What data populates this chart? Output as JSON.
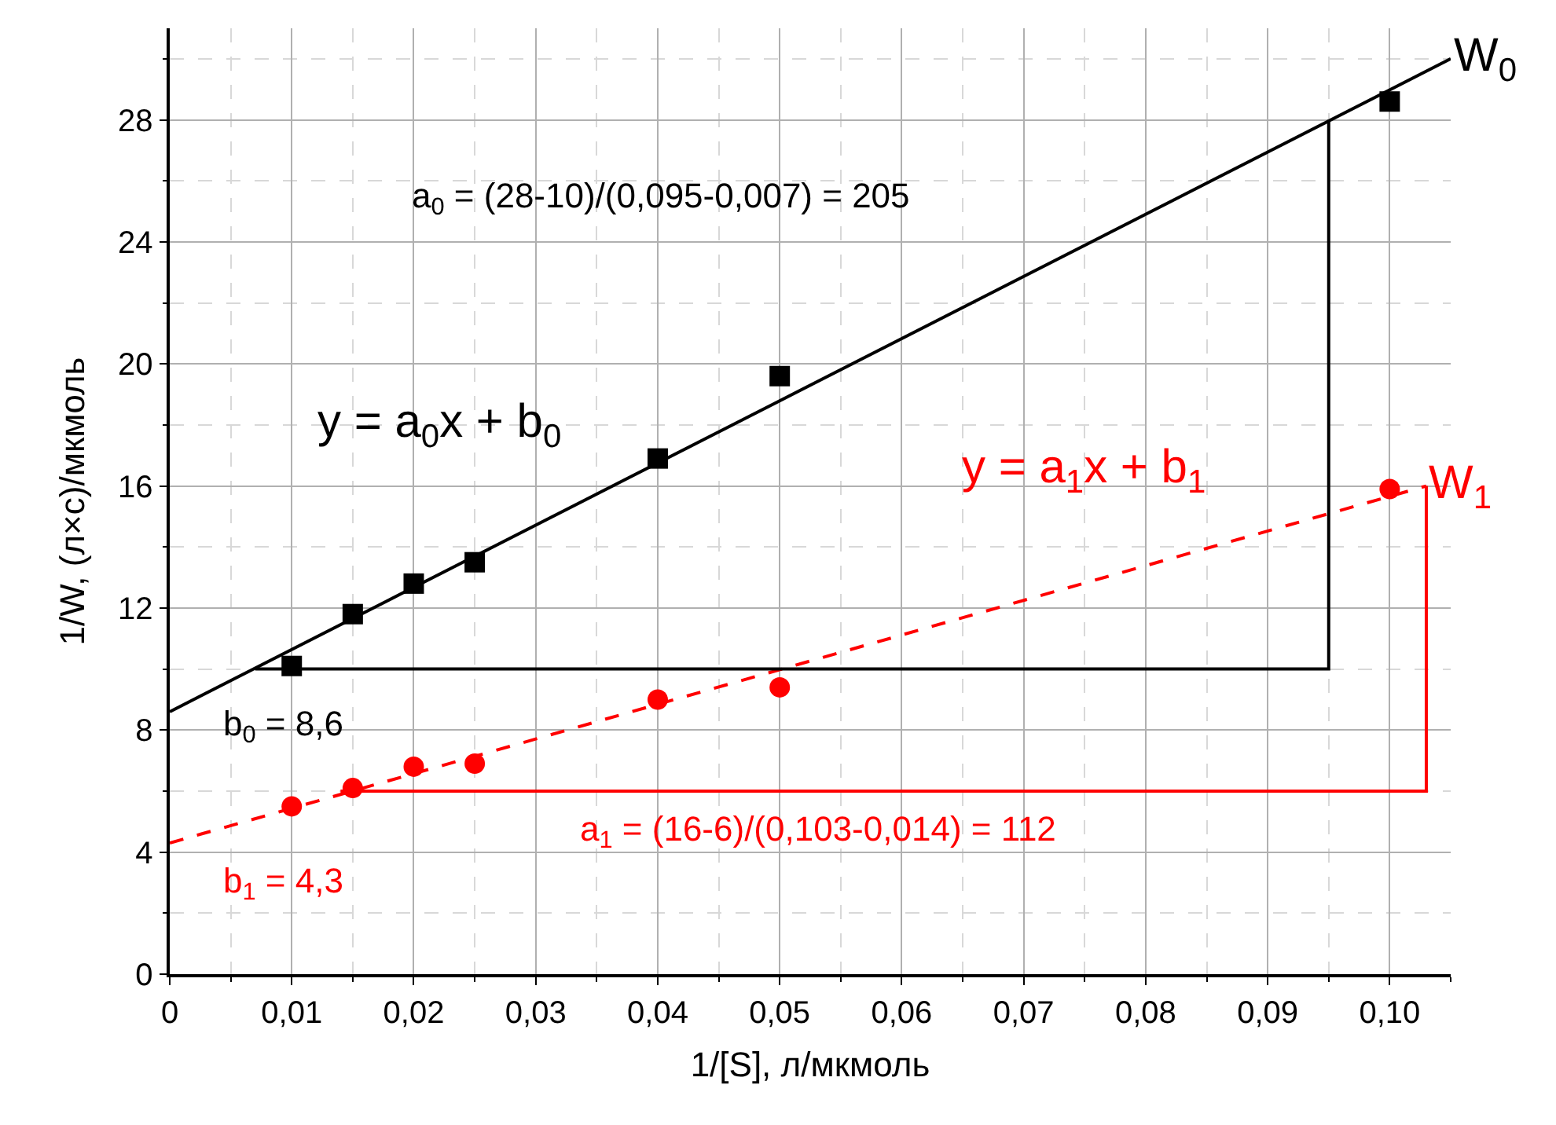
{
  "chart_data": {
    "type": "scatter",
    "xlabel": "1/[S], л/мкмоль",
    "ylabel": "1/W, (л×с)/мкмоль",
    "xlim": [
      0,
      0.105
    ],
    "ylim": [
      0,
      31
    ],
    "xticks": [
      0,
      {
        "value": 0.01,
        "label": "0,01"
      },
      {
        "value": 0.02,
        "label": "0,02"
      },
      {
        "value": 0.03,
        "label": "0,03"
      },
      {
        "value": 0.04,
        "label": "0,04"
      },
      {
        "value": 0.05,
        "label": "0,05"
      },
      {
        "value": 0.06,
        "label": "0,06"
      },
      {
        "value": 0.07,
        "label": "0,07"
      },
      {
        "value": 0.08,
        "label": "0,08"
      },
      {
        "value": 0.09,
        "label": "0,09"
      },
      {
        "value": 0.1,
        "label": "0,10"
      }
    ],
    "yticks": [
      0,
      4,
      8,
      12,
      16,
      20,
      24,
      28
    ],
    "grid": true,
    "series": [
      {
        "marker": "square",
        "color": "#000000",
        "x": [
          0.01,
          0.015,
          0.02,
          0.025,
          0.04,
          0.05,
          0.1
        ],
        "values": [
          10.1,
          11.8,
          12.8,
          13.5,
          16.9,
          19.6,
          28.6
        ]
      },
      {
        "marker": "circle",
        "color": "#ff0000",
        "x": [
          0.01,
          0.015,
          0.02,
          0.025,
          0.04,
          0.05,
          0.1
        ],
        "values": [
          5.5,
          6.1,
          6.8,
          6.9,
          9.0,
          9.4,
          15.9
        ]
      },
      {
        "type": "line",
        "line_style": "solid",
        "color": "#000000",
        "x": [
          0,
          0.105
        ],
        "values": [
          8.6,
          30.0
        ]
      },
      {
        "type": "line",
        "line_style": "dashed",
        "color": "#ff0000",
        "x": [
          0,
          0.103
        ],
        "values": [
          4.3,
          16.0
        ]
      },
      {
        "type": "line",
        "line_style": "solid",
        "color": "#000000",
        "x": [
          0.007,
          0.095,
          0.095
        ],
        "values": [
          10,
          10,
          28
        ]
      },
      {
        "type": "line",
        "line_style": "solid",
        "color": "#ff0000",
        "x": [
          0.014,
          0.103,
          0.103
        ],
        "values": [
          6,
          6,
          16
        ]
      }
    ],
    "annotations": [
      {
        "text": "W$_{0}$",
        "x": 0.105,
        "y": 30.0
      },
      {
        "text": "W$_{1}$",
        "x": 0.103,
        "y": 16.0
      },
      "a$_{0}$ = (28-10)/(0,095-0,007) = 205",
      "y = a$_{0}$x + b$_{0}$",
      "b$_{0}$ = 8,6",
      "y = a$_{1}$x + b$_{1}$",
      "a$_{1}$ = (16-6)/(0,103-0,014) = 112",
      "b$_{1}$ = 4,3"
    ]
  }
}
